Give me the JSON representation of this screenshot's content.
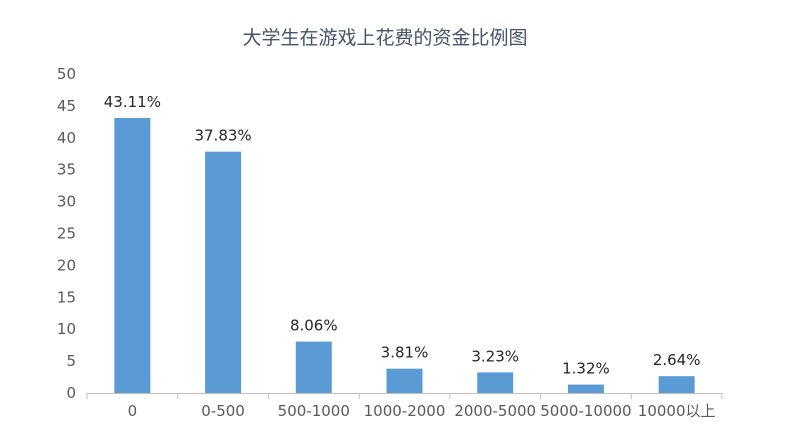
{
  "chart_data": {
    "type": "bar",
    "title": "大学生在游戏上花费的资金比例图",
    "xlabel": "",
    "ylabel": "",
    "categories": [
      "0",
      "0-500",
      "500-1000",
      "1000-2000",
      "2000-5000",
      "5000-10000",
      "10000以上"
    ],
    "values": [
      43.11,
      37.83,
      8.06,
      3.81,
      3.23,
      1.32,
      2.64
    ],
    "data_labels": [
      "43.11%",
      "37.83%",
      "8.06%",
      "3.81%",
      "3.23%",
      "1.32%",
      "2.64%"
    ],
    "ylim": [
      0,
      50
    ],
    "yticks": [
      0,
      5,
      10,
      15,
      20,
      25,
      30,
      35,
      40,
      45,
      50
    ],
    "grid": false,
    "legend": "none",
    "colors": {
      "bar": "#5b9bd5",
      "title": "#44546a",
      "axis": "#bfbfbf"
    }
  }
}
